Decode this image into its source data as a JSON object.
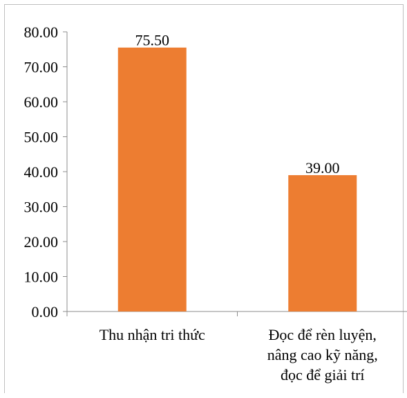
{
  "chart_data": {
    "type": "bar",
    "categories": [
      [
        "Thu nhận tri thức"
      ],
      [
        "Đọc để rèn luyện,",
        "nâng cao kỹ năng,",
        "đọc để giải trí"
      ]
    ],
    "values": [
      75.5,
      39.0
    ],
    "data_labels": [
      "75.50",
      "39.00"
    ],
    "y_ticks": [
      "0.00",
      "10.00",
      "20.00",
      "30.00",
      "40.00",
      "50.00",
      "60.00",
      "70.00",
      "80.00"
    ],
    "ylim": [
      0,
      80
    ],
    "grid": false,
    "legend": "none",
    "title": "",
    "xlabel": "",
    "ylabel": "",
    "colors": {
      "bar": "#ed7d31",
      "axis": "#8c8c8c",
      "frame": "#bfbfbf"
    }
  }
}
